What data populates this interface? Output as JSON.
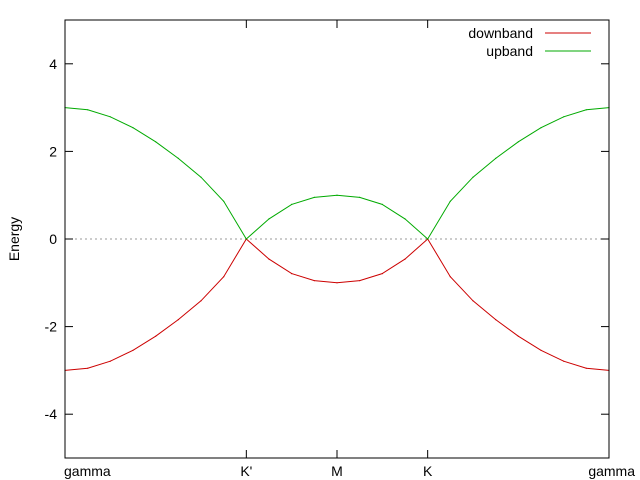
{
  "chart_data": {
    "type": "line",
    "ylabel": "Energy",
    "xlabel": "",
    "ylim": [
      -5,
      5
    ],
    "yticks": [
      -4,
      -2,
      0,
      2,
      4
    ],
    "xlim": [
      0,
      6
    ],
    "xticks": [
      {
        "x": 0,
        "label": "gamma"
      },
      {
        "x": 2,
        "label": "K'"
      },
      {
        "x": 3,
        "label": "M"
      },
      {
        "x": 4,
        "label": "K"
      },
      {
        "x": 6,
        "label": "gamma"
      }
    ],
    "zero_line": true,
    "grid": false,
    "legend_position": "top-right",
    "series": [
      {
        "name": "downband",
        "color": "#cc0000",
        "x": [
          0,
          0.25,
          0.5,
          0.75,
          1,
          1.25,
          1.5,
          1.75,
          2,
          2.25,
          2.5,
          2.75,
          3,
          3.25,
          3.5,
          3.75,
          4,
          4.25,
          4.5,
          4.75,
          5,
          5.25,
          5.5,
          5.75,
          6
        ],
        "values": [
          -3.0,
          -2.95,
          -2.79,
          -2.54,
          -2.22,
          -1.84,
          -1.41,
          -0.86,
          0.0,
          -0.46,
          -0.79,
          -0.95,
          -1.0,
          -0.95,
          -0.79,
          -0.46,
          0.0,
          -0.86,
          -1.41,
          -1.84,
          -2.22,
          -2.54,
          -2.79,
          -2.95,
          -3.0
        ]
      },
      {
        "name": "upband",
        "color": "#00aa00",
        "x": [
          0,
          0.25,
          0.5,
          0.75,
          1,
          1.25,
          1.5,
          1.75,
          2,
          2.25,
          2.5,
          2.75,
          3,
          3.25,
          3.5,
          3.75,
          4,
          4.25,
          4.5,
          4.75,
          5,
          5.25,
          5.5,
          5.75,
          6
        ],
        "values": [
          3.0,
          2.95,
          2.79,
          2.54,
          2.22,
          1.84,
          1.41,
          0.86,
          0.0,
          0.46,
          0.79,
          0.95,
          1.0,
          0.95,
          0.79,
          0.46,
          0.0,
          0.86,
          1.41,
          1.84,
          2.22,
          2.54,
          2.79,
          2.95,
          3.0
        ]
      }
    ]
  }
}
